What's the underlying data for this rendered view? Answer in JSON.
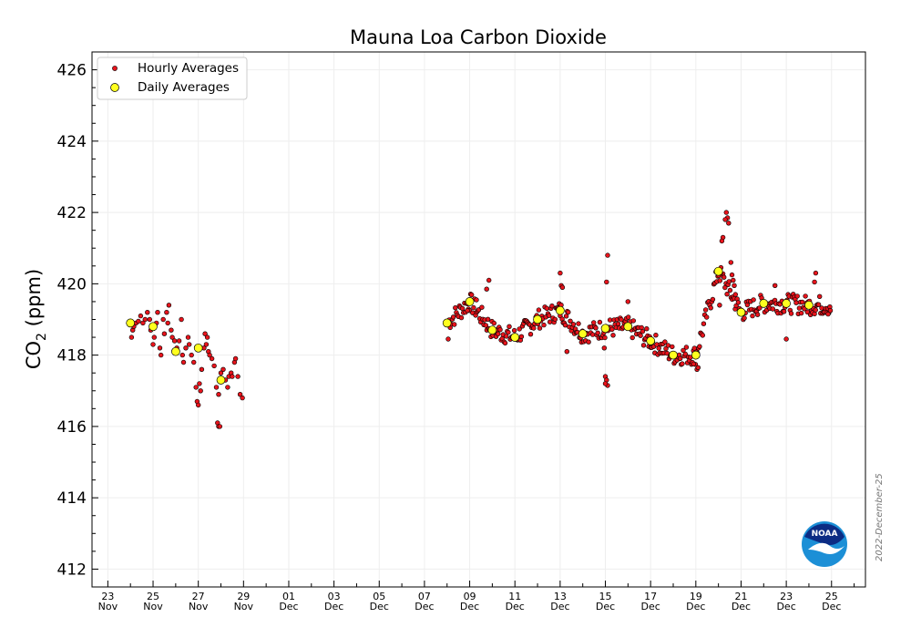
{
  "chart_data": {
    "type": "scatter",
    "title": "Mauna Loa Carbon Dioxide",
    "ylabel_main": "CO",
    "ylabel_sub": "2",
    "ylabel_unit": " (ppm)",
    "ylim": [
      411.5,
      426.5
    ],
    "yticks": [
      412,
      414,
      416,
      418,
      420,
      422,
      424,
      426
    ],
    "xlim": [
      22.3,
      56.5
    ],
    "x_unit": "day offset from Nov 0 (2022)",
    "xticks": [
      {
        "x": 23,
        "day": "23",
        "month": "Nov"
      },
      {
        "x": 25,
        "day": "25",
        "month": "Nov"
      },
      {
        "x": 27,
        "day": "27",
        "month": "Nov"
      },
      {
        "x": 29,
        "day": "29",
        "month": "Nov"
      },
      {
        "x": 31,
        "day": "01",
        "month": "Dec"
      },
      {
        "x": 33,
        "day": "03",
        "month": "Dec"
      },
      {
        "x": 35,
        "day": "05",
        "month": "Dec"
      },
      {
        "x": 37,
        "day": "07",
        "month": "Dec"
      },
      {
        "x": 39,
        "day": "09",
        "month": "Dec"
      },
      {
        "x": 41,
        "day": "11",
        "month": "Dec"
      },
      {
        "x": 43,
        "day": "13",
        "month": "Dec"
      },
      {
        "x": 45,
        "day": "15",
        "month": "Dec"
      },
      {
        "x": 47,
        "day": "17",
        "month": "Dec"
      },
      {
        "x": 49,
        "day": "19",
        "month": "Dec"
      },
      {
        "x": 51,
        "day": "21",
        "month": "Dec"
      },
      {
        "x": 53,
        "day": "23",
        "month": "Dec"
      },
      {
        "x": 55,
        "day": "25",
        "month": "Dec"
      }
    ],
    "grid": true,
    "legend_position": "top-left",
    "series": [
      {
        "name": "Hourly Averages",
        "color": "#e8141c",
        "points": [
          [
            24.05,
            418.5
          ],
          [
            24.1,
            418.7
          ],
          [
            24.15,
            418.8
          ],
          [
            24.25,
            418.9
          ],
          [
            24.35,
            418.95
          ],
          [
            24.45,
            419.1
          ],
          [
            24.55,
            418.9
          ],
          [
            24.65,
            419.0
          ],
          [
            24.75,
            419.2
          ],
          [
            24.85,
            419.0
          ],
          [
            24.9,
            418.7
          ],
          [
            25.0,
            418.3
          ],
          [
            25.05,
            418.5
          ],
          [
            25.15,
            418.9
          ],
          [
            25.2,
            419.2
          ],
          [
            25.3,
            418.2
          ],
          [
            25.35,
            418.0
          ],
          [
            25.45,
            419.0
          ],
          [
            25.5,
            418.6
          ],
          [
            25.6,
            419.2
          ],
          [
            25.65,
            418.9
          ],
          [
            25.7,
            419.4
          ],
          [
            25.8,
            418.7
          ],
          [
            25.85,
            418.5
          ],
          [
            25.95,
            418.4
          ],
          [
            26.05,
            418.2
          ],
          [
            26.15,
            418.4
          ],
          [
            26.25,
            419.0
          ],
          [
            26.3,
            418.0
          ],
          [
            26.35,
            417.8
          ],
          [
            26.45,
            418.2
          ],
          [
            26.55,
            418.5
          ],
          [
            26.6,
            418.3
          ],
          [
            26.7,
            418.0
          ],
          [
            26.8,
            417.8
          ],
          [
            26.9,
            417.1
          ],
          [
            26.95,
            416.7
          ],
          [
            27.0,
            416.6
          ],
          [
            27.05,
            417.2
          ],
          [
            27.1,
            417.0
          ],
          [
            27.15,
            417.6
          ],
          [
            27.25,
            418.2
          ],
          [
            27.3,
            418.6
          ],
          [
            27.35,
            418.3
          ],
          [
            27.4,
            418.5
          ],
          [
            27.45,
            418.1
          ],
          [
            27.5,
            418.0
          ],
          [
            27.6,
            417.9
          ],
          [
            27.7,
            417.7
          ],
          [
            27.8,
            417.1
          ],
          [
            27.9,
            416.9
          ],
          [
            27.85,
            416.1
          ],
          [
            27.9,
            416.0
          ],
          [
            27.95,
            416.0
          ],
          [
            28.0,
            417.5
          ],
          [
            28.1,
            417.6
          ],
          [
            28.2,
            417.3
          ],
          [
            28.3,
            417.1
          ],
          [
            28.35,
            417.4
          ],
          [
            28.45,
            417.5
          ],
          [
            28.5,
            417.4
          ],
          [
            28.6,
            417.8
          ],
          [
            28.65,
            417.9
          ],
          [
            28.75,
            417.4
          ],
          [
            28.85,
            416.9
          ],
          [
            28.95,
            416.8
          ]
        ]
      },
      {
        "name": "Daily Averages",
        "color": "#ffff1f",
        "points": [
          [
            24.0,
            418.9
          ],
          [
            25.0,
            418.8
          ],
          [
            26.0,
            418.1
          ],
          [
            27.0,
            418.2
          ],
          [
            28.0,
            417.3
          ],
          [
            38.0,
            418.9
          ],
          [
            39.0,
            419.5
          ],
          [
            40.0,
            418.7
          ],
          [
            41.0,
            418.5
          ],
          [
            42.0,
            419.0
          ],
          [
            43.0,
            419.25
          ],
          [
            44.0,
            418.6
          ],
          [
            45.0,
            418.75
          ],
          [
            46.0,
            418.8
          ],
          [
            47.0,
            418.4
          ],
          [
            48.0,
            418.0
          ],
          [
            49.0,
            418.0
          ],
          [
            50.0,
            420.35
          ],
          [
            51.0,
            419.2
          ],
          [
            52.0,
            419.45
          ],
          [
            53.0,
            419.45
          ],
          [
            54.0,
            419.4
          ]
        ]
      }
    ],
    "legend": [
      {
        "label": "Hourly Averages",
        "marker": "small-red-dot"
      },
      {
        "label": "Daily Averages",
        "marker": "yellow-dot"
      }
    ]
  },
  "annotations": {
    "date_stamp": "2022-December-25",
    "logo_text": "NOAA"
  }
}
